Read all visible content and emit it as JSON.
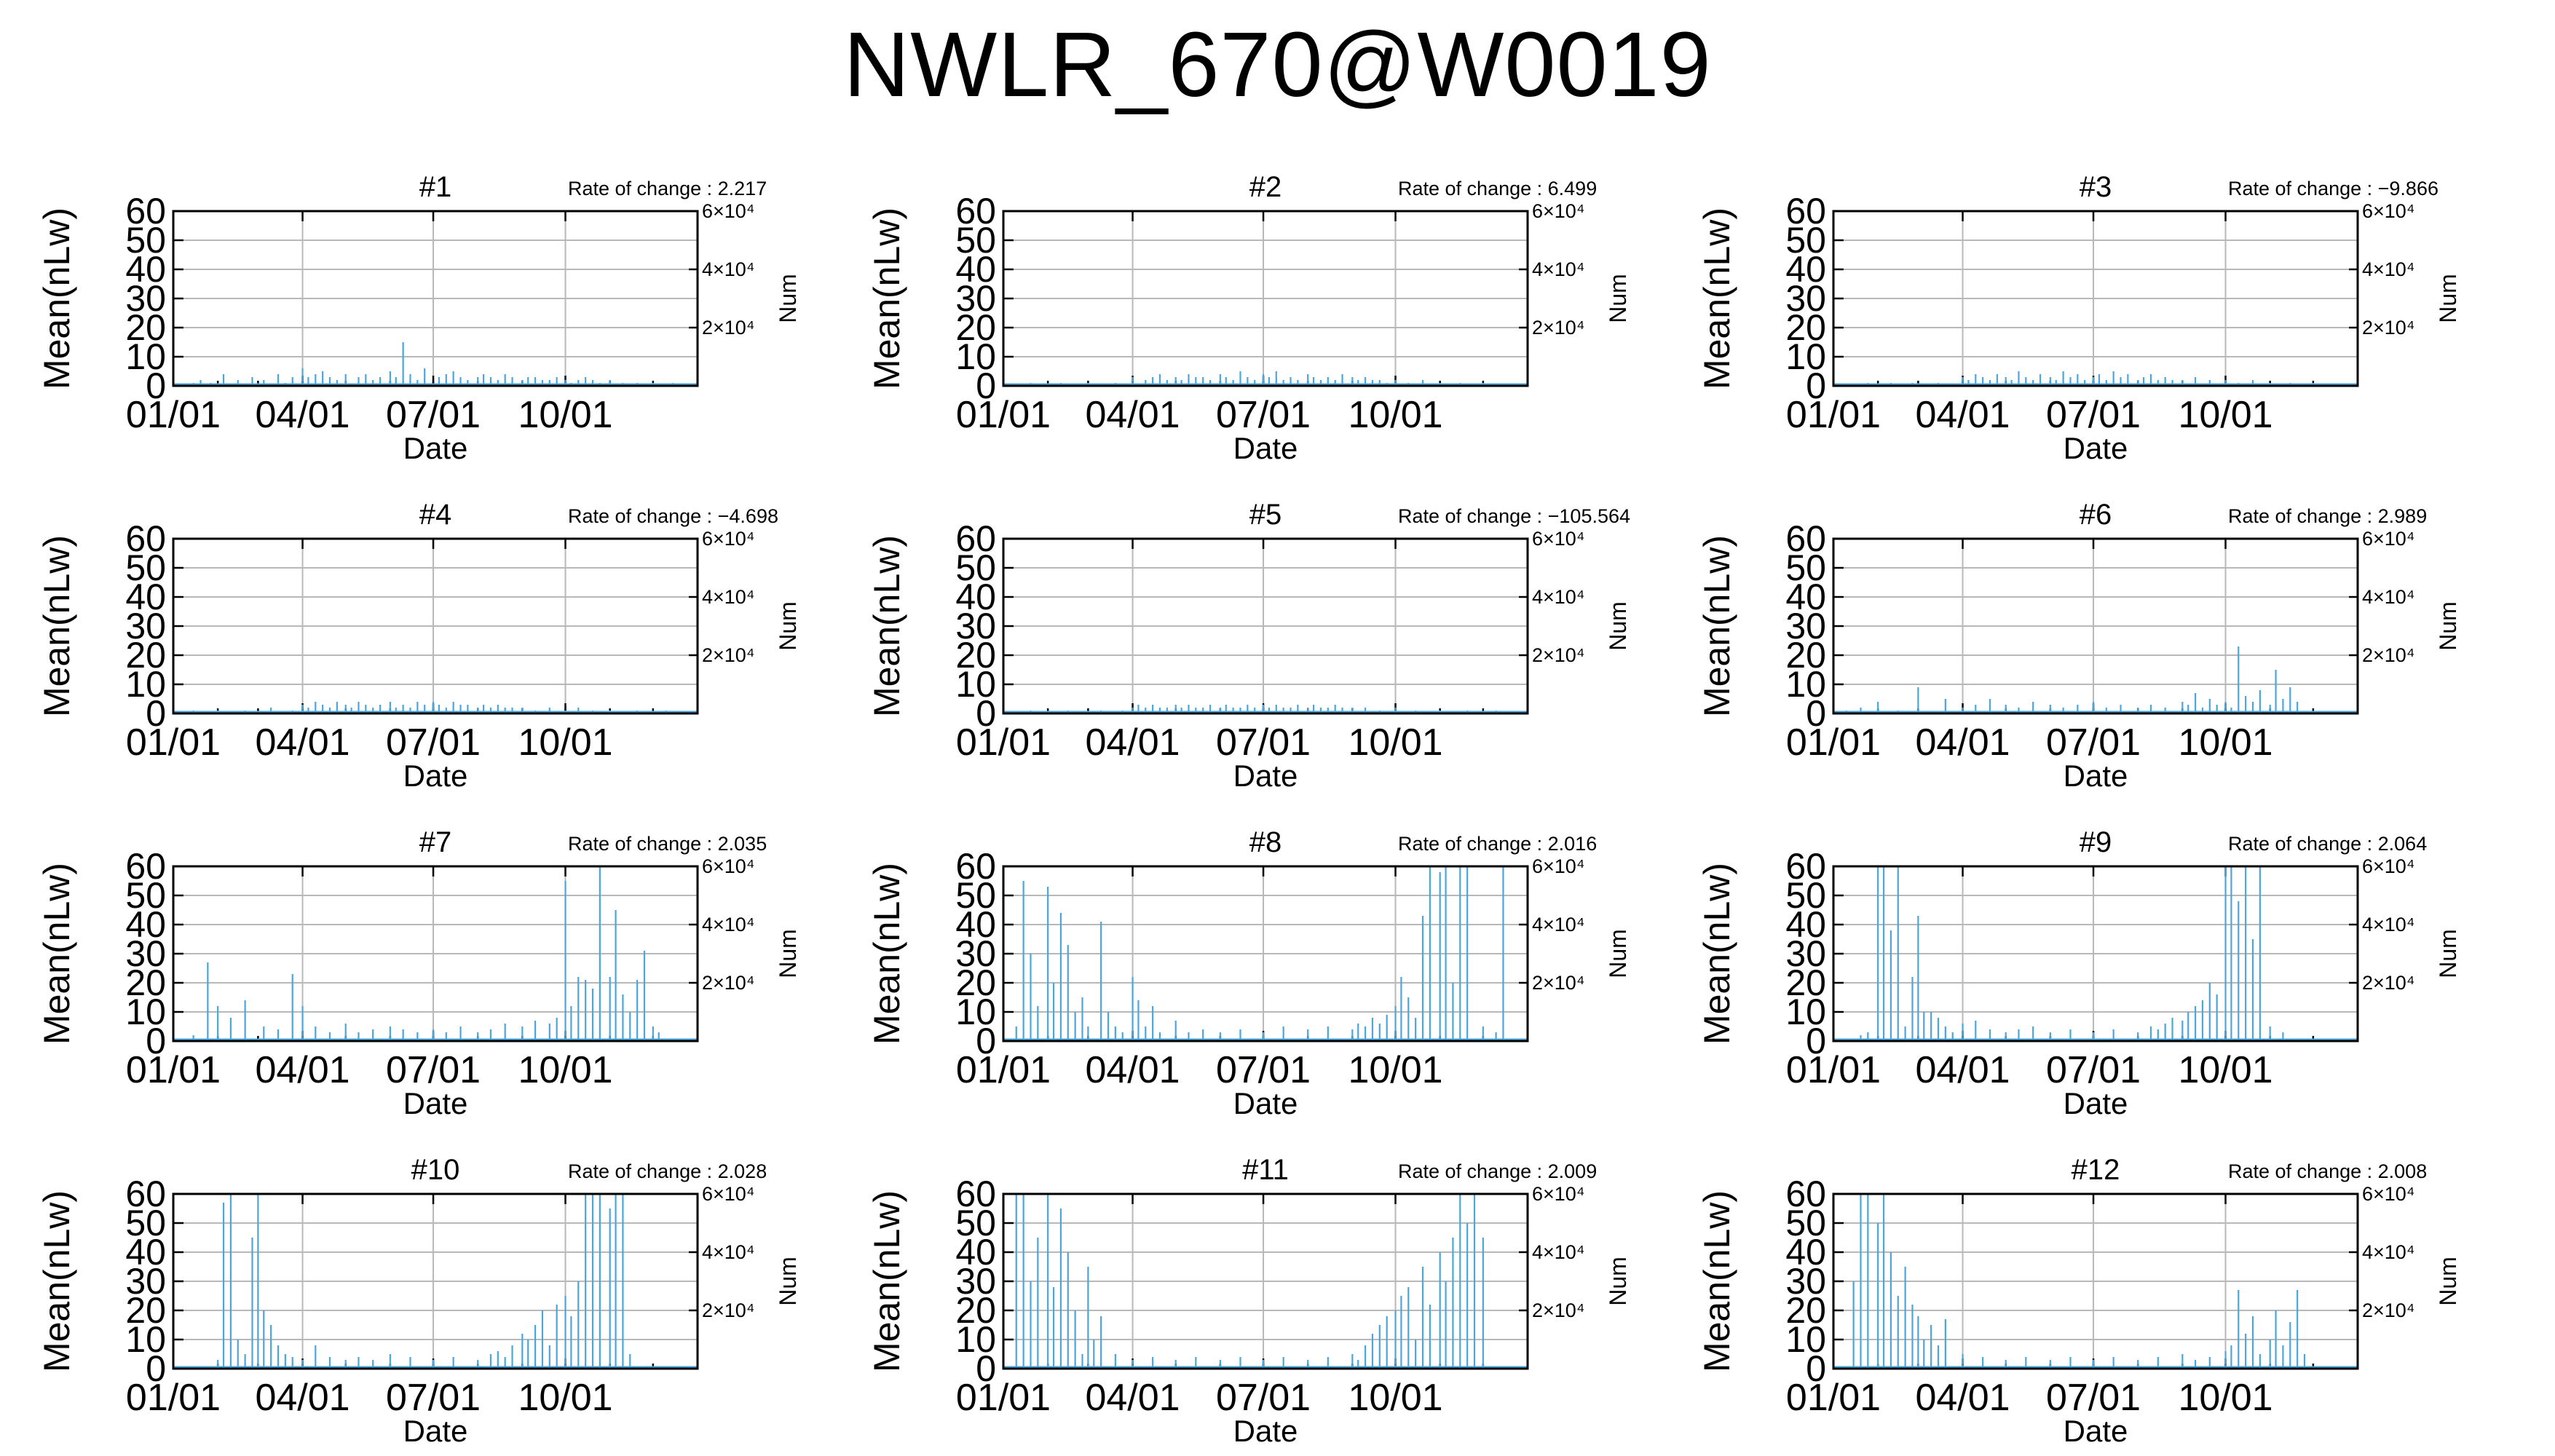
{
  "title": "NWLR_670@W0019",
  "chart_data": [
    {
      "type": "bar",
      "title": "#1",
      "rate": "Rate of change : 2.217",
      "x": [
        "01/15",
        "01/20",
        "01/27",
        "02/05",
        "02/15",
        "02/25",
        "03/05",
        "03/15",
        "03/20",
        "03/25",
        "04/01",
        "04/05",
        "04/10",
        "04/15",
        "04/20",
        "04/25",
        "05/01",
        "05/10",
        "05/15",
        "05/20",
        "05/25",
        "06/01",
        "06/05",
        "06/10",
        "06/15",
        "06/20",
        "06/25",
        "07/05",
        "07/10",
        "07/15",
        "07/20",
        "07/25",
        "08/01",
        "08/05",
        "08/10",
        "08/15",
        "08/20",
        "08/25",
        "09/01",
        "09/05",
        "09/10",
        "09/15",
        "09/20",
        "09/25",
        "10/01",
        "10/05",
        "10/10",
        "10/15",
        "10/20",
        "10/25",
        "11/01",
        "11/10",
        "11/20",
        "12/01",
        "12/15"
      ],
      "values": [
        1,
        2,
        1,
        4,
        2,
        3,
        2,
        4,
        1,
        3,
        6,
        3,
        4,
        5,
        3,
        2,
        4,
        3,
        4,
        2,
        3,
        5,
        3,
        15,
        4,
        2,
        6,
        3,
        4,
        5,
        3,
        2,
        3,
        4,
        3,
        2,
        4,
        3,
        2,
        3,
        3,
        2,
        2,
        3,
        2,
        1,
        2,
        3,
        2,
        1,
        2,
        1,
        1,
        1,
        1
      ]
    },
    {
      "type": "bar",
      "title": "#2",
      "rate": "Rate of change : 6.499",
      "x": [
        "01/20",
        "02/10",
        "03/01",
        "03/20",
        "04/01",
        "04/10",
        "04/15",
        "04/20",
        "04/25",
        "05/01",
        "05/05",
        "05/10",
        "05/15",
        "05/20",
        "05/25",
        "06/01",
        "06/05",
        "06/10",
        "06/15",
        "06/20",
        "06/25",
        "07/01",
        "07/05",
        "07/10",
        "07/15",
        "07/20",
        "07/25",
        "08/01",
        "08/05",
        "08/10",
        "08/15",
        "08/20",
        "08/25",
        "09/01",
        "09/05",
        "09/10",
        "09/15",
        "09/20",
        "09/25",
        "10/01",
        "10/10",
        "10/20",
        "11/01",
        "11/15",
        "12/01"
      ],
      "values": [
        1,
        1,
        1,
        1,
        3,
        2,
        3,
        4,
        2,
        3,
        2,
        4,
        3,
        3,
        2,
        4,
        3,
        2,
        5,
        3,
        2,
        4,
        3,
        5,
        2,
        3,
        2,
        4,
        3,
        2,
        3,
        2,
        4,
        3,
        2,
        3,
        2,
        2,
        1,
        2,
        1,
        2,
        1,
        1,
        1
      ]
    },
    {
      "type": "bar",
      "title": "#3",
      "rate": "Rate of change : −9.866",
      "x": [
        "01/25",
        "02/10",
        "02/25",
        "03/15",
        "04/01",
        "04/05",
        "04/10",
        "04/15",
        "04/20",
        "04/25",
        "05/01",
        "05/05",
        "05/10",
        "05/15",
        "05/20",
        "05/25",
        "06/01",
        "06/05",
        "06/10",
        "06/15",
        "06/20",
        "06/25",
        "07/01",
        "07/05",
        "07/10",
        "07/15",
        "07/20",
        "07/25",
        "08/01",
        "08/05",
        "08/10",
        "08/15",
        "08/20",
        "08/25",
        "09/01",
        "09/10",
        "09/20",
        "10/01",
        "10/10",
        "10/20",
        "11/01",
        "11/15",
        "12/01"
      ],
      "values": [
        1,
        1,
        1,
        1,
        3,
        2,
        4,
        3,
        2,
        4,
        3,
        2,
        5,
        3,
        2,
        4,
        3,
        2,
        5,
        3,
        4,
        2,
        3,
        4,
        2,
        5,
        3,
        4,
        2,
        3,
        4,
        2,
        3,
        2,
        2,
        3,
        2,
        2,
        1,
        2,
        1,
        1,
        1
      ]
    },
    {
      "type": "bar",
      "title": "#4",
      "rate": "Rate of change : −4.698",
      "x": [
        "01/15",
        "02/01",
        "02/20",
        "03/10",
        "03/25",
        "04/01",
        "04/05",
        "04/10",
        "04/15",
        "04/20",
        "04/25",
        "05/01",
        "05/05",
        "05/10",
        "05/15",
        "05/20",
        "05/25",
        "06/01",
        "06/05",
        "06/10",
        "06/15",
        "06/20",
        "06/25",
        "07/01",
        "07/05",
        "07/10",
        "07/15",
        "07/20",
        "07/25",
        "08/01",
        "08/05",
        "08/10",
        "08/15",
        "08/20",
        "08/25",
        "09/01",
        "09/10",
        "09/20",
        "10/01",
        "10/10",
        "10/20",
        "11/01",
        "11/20",
        "12/10"
      ],
      "values": [
        1,
        1,
        1,
        2,
        1,
        3,
        2,
        4,
        3,
        2,
        4,
        3,
        2,
        4,
        3,
        2,
        3,
        4,
        2,
        3,
        2,
        4,
        3,
        4,
        3,
        2,
        4,
        3,
        3,
        2,
        3,
        2,
        3,
        2,
        2,
        2,
        1,
        2,
        1,
        2,
        1,
        1,
        1,
        1
      ]
    },
    {
      "type": "bar",
      "title": "#5",
      "rate": "Rate of change : −105.564",
      "x": [
        "01/20",
        "02/15",
        "03/10",
        "03/25",
        "04/01",
        "04/05",
        "04/10",
        "04/15",
        "04/20",
        "04/25",
        "05/01",
        "05/05",
        "05/10",
        "05/15",
        "05/20",
        "05/25",
        "06/01",
        "06/05",
        "06/10",
        "06/15",
        "06/20",
        "06/25",
        "07/01",
        "07/05",
        "07/10",
        "07/15",
        "07/20",
        "07/25",
        "08/01",
        "08/05",
        "08/10",
        "08/15",
        "08/20",
        "08/25",
        "09/01",
        "09/10",
        "09/20",
        "10/01",
        "10/15",
        "11/01",
        "11/20",
        "12/10"
      ],
      "values": [
        1,
        1,
        1,
        1,
        2,
        3,
        2,
        3,
        2,
        2,
        3,
        2,
        3,
        2,
        2,
        3,
        2,
        3,
        2,
        2,
        3,
        2,
        3,
        2,
        3,
        2,
        2,
        3,
        2,
        3,
        2,
        2,
        3,
        2,
        2,
        2,
        1,
        2,
        1,
        1,
        1,
        1
      ]
    },
    {
      "type": "bar",
      "title": "#6",
      "rate": "Rate of change : 2.989",
      "x": [
        "01/10",
        "01/20",
        "02/01",
        "02/15",
        "03/01",
        "03/20",
        "04/01",
        "04/10",
        "04/20",
        "05/01",
        "05/10",
        "05/20",
        "06/01",
        "06/10",
        "06/20",
        "07/01",
        "07/10",
        "07/20",
        "08/01",
        "08/10",
        "08/20",
        "09/01",
        "09/05",
        "09/10",
        "09/15",
        "09/20",
        "09/25",
        "10/01",
        "10/05",
        "10/10",
        "10/15",
        "10/20",
        "10/25",
        "11/01",
        "11/05",
        "11/10",
        "11/15",
        "11/20"
      ],
      "values": [
        1,
        2,
        4,
        1,
        9,
        5,
        2,
        3,
        5,
        3,
        2,
        4,
        3,
        2,
        3,
        4,
        2,
        3,
        2,
        3,
        2,
        4,
        3,
        7,
        2,
        5,
        3,
        4,
        2,
        23,
        6,
        4,
        8,
        3,
        15,
        5,
        9,
        4
      ]
    },
    {
      "type": "bar",
      "title": "#7",
      "rate": "Rate of change : 2.035",
      "x": [
        "01/15",
        "01/25",
        "02/01",
        "02/10",
        "02/20",
        "03/05",
        "03/15",
        "03/25",
        "04/01",
        "04/10",
        "04/20",
        "05/01",
        "05/10",
        "05/20",
        "06/01",
        "06/10",
        "06/20",
        "07/01",
        "07/10",
        "07/20",
        "08/01",
        "08/10",
        "08/20",
        "09/01",
        "09/10",
        "09/20",
        "09/25",
        "10/01",
        "10/05",
        "10/10",
        "10/15",
        "10/20",
        "10/25",
        "11/01",
        "11/05",
        "11/10",
        "11/15",
        "11/20",
        "11/25",
        "12/01",
        "12/05"
      ],
      "values": [
        2,
        27,
        12,
        8,
        14,
        5,
        4,
        23,
        12,
        5,
        3,
        6,
        3,
        4,
        5,
        4,
        3,
        4,
        3,
        5,
        3,
        4,
        6,
        5,
        7,
        6,
        8,
        55,
        12,
        22,
        21,
        18,
        60,
        22,
        45,
        16,
        10,
        21,
        31,
        5,
        3
      ]
    },
    {
      "type": "bar",
      "title": "#8",
      "rate": "Rate of change : 2.016",
      "x": [
        "01/10",
        "01/15",
        "01/20",
        "01/25",
        "02/01",
        "02/05",
        "02/10",
        "02/15",
        "02/20",
        "02/25",
        "03/01",
        "03/10",
        "03/15",
        "03/20",
        "03/25",
        "04/01",
        "04/05",
        "04/10",
        "04/15",
        "04/20",
        "05/01",
        "05/10",
        "05/20",
        "06/01",
        "06/15",
        "07/01",
        "07/15",
        "08/01",
        "08/15",
        "09/01",
        "09/05",
        "09/10",
        "09/15",
        "09/20",
        "09/25",
        "10/01",
        "10/05",
        "10/10",
        "10/15",
        "10/20",
        "10/25",
        "11/01",
        "11/05",
        "11/10",
        "11/15",
        "11/20",
        "12/01",
        "12/10",
        "12/15"
      ],
      "values": [
        5,
        55,
        30,
        12,
        53,
        20,
        44,
        33,
        10,
        15,
        5,
        41,
        10,
        5,
        3,
        22,
        14,
        5,
        12,
        3,
        7,
        3,
        4,
        3,
        4,
        3,
        5,
        4,
        5,
        4,
        6,
        5,
        8,
        6,
        9,
        12,
        22,
        15,
        8,
        43,
        60,
        58,
        60,
        20,
        60,
        60,
        5,
        3,
        60
      ]
    },
    {
      "type": "bar",
      "title": "#9",
      "rate": "Rate of change : 2.064",
      "x": [
        "01/20",
        "01/25",
        "02/01",
        "02/05",
        "02/10",
        "02/15",
        "02/20",
        "02/25",
        "03/01",
        "03/05",
        "03/10",
        "03/15",
        "03/20",
        "03/25",
        "04/01",
        "04/10",
        "04/20",
        "05/01",
        "05/10",
        "05/20",
        "06/01",
        "06/15",
        "07/01",
        "07/15",
        "08/01",
        "08/10",
        "08/15",
        "08/20",
        "08/25",
        "09/01",
        "09/05",
        "09/10",
        "09/15",
        "09/20",
        "09/25",
        "10/01",
        "10/05",
        "10/10",
        "10/15",
        "10/20",
        "10/25",
        "11/01",
        "11/10"
      ],
      "values": [
        2,
        3,
        60,
        60,
        38,
        60,
        5,
        22,
        43,
        10,
        10,
        8,
        5,
        3,
        6,
        7,
        4,
        3,
        4,
        5,
        3,
        4,
        3,
        4,
        3,
        5,
        4,
        6,
        8,
        7,
        10,
        12,
        14,
        20,
        16,
        60,
        60,
        48,
        60,
        35,
        60,
        5,
        3
      ]
    },
    {
      "type": "bar",
      "title": "#10",
      "rate": "Rate of change : 2.028",
      "x": [
        "02/01",
        "02/05",
        "02/10",
        "02/15",
        "02/20",
        "02/25",
        "03/01",
        "03/05",
        "03/10",
        "03/15",
        "03/20",
        "03/25",
        "04/01",
        "04/10",
        "04/20",
        "05/01",
        "05/10",
        "05/20",
        "06/01",
        "06/15",
        "07/01",
        "07/15",
        "08/01",
        "08/10",
        "08/15",
        "08/20",
        "08/25",
        "09/01",
        "09/05",
        "09/10",
        "09/15",
        "09/20",
        "09/25",
        "10/01",
        "10/05",
        "10/10",
        "10/15",
        "10/20",
        "10/25",
        "11/01",
        "11/05",
        "11/10",
        "11/15"
      ],
      "values": [
        3,
        57,
        60,
        10,
        5,
        45,
        60,
        20,
        15,
        8,
        5,
        4,
        3,
        8,
        4,
        3,
        4,
        3,
        5,
        4,
        3,
        4,
        3,
        5,
        6,
        4,
        8,
        12,
        10,
        15,
        20,
        8,
        22,
        25,
        18,
        30,
        60,
        60,
        60,
        55,
        60,
        60,
        5
      ]
    },
    {
      "type": "bar",
      "title": "#11",
      "rate": "Rate of change : 2.009",
      "x": [
        "01/10",
        "01/15",
        "01/20",
        "01/25",
        "02/01",
        "02/05",
        "02/10",
        "02/15",
        "02/20",
        "02/25",
        "03/01",
        "03/05",
        "03/10",
        "03/20",
        "04/01",
        "04/15",
        "05/01",
        "05/15",
        "06/01",
        "06/15",
        "07/01",
        "07/15",
        "08/01",
        "08/15",
        "09/01",
        "09/05",
        "09/10",
        "09/15",
        "09/20",
        "09/25",
        "10/01",
        "10/05",
        "10/10",
        "10/15",
        "10/20",
        "10/25",
        "11/01",
        "11/05",
        "11/10",
        "11/15",
        "11/20",
        "11/25",
        "12/01"
      ],
      "values": [
        60,
        60,
        30,
        45,
        60,
        28,
        55,
        40,
        20,
        5,
        35,
        10,
        18,
        5,
        3,
        4,
        3,
        4,
        3,
        4,
        3,
        4,
        3,
        4,
        5,
        3,
        8,
        12,
        15,
        18,
        20,
        25,
        28,
        10,
        35,
        22,
        40,
        30,
        45,
        60,
        50,
        60,
        45
      ]
    },
    {
      "type": "bar",
      "title": "#12",
      "rate": "Rate of change : 2.008",
      "x": [
        "01/15",
        "01/20",
        "01/25",
        "02/01",
        "02/05",
        "02/10",
        "02/15",
        "02/20",
        "02/25",
        "03/01",
        "03/05",
        "03/10",
        "03/15",
        "03/20",
        "04/01",
        "04/15",
        "05/01",
        "05/15",
        "06/01",
        "06/15",
        "07/01",
        "07/15",
        "08/01",
        "08/15",
        "09/01",
        "09/10",
        "09/20",
        "10/01",
        "10/05",
        "10/10",
        "10/15",
        "10/20",
        "10/25",
        "11/01",
        "11/05",
        "11/10",
        "11/15",
        "11/20",
        "11/25"
      ],
      "values": [
        30,
        60,
        60,
        50,
        60,
        40,
        25,
        35,
        22,
        18,
        10,
        15,
        8,
        17,
        5,
        4,
        3,
        4,
        3,
        4,
        3,
        4,
        3,
        4,
        5,
        3,
        4,
        6,
        8,
        27,
        12,
        18,
        5,
        10,
        20,
        8,
        16,
        27,
        5
      ]
    }
  ],
  "common": {
    "y_ticks": [
      "60",
      "50",
      "40",
      "30",
      "20",
      "10",
      "0"
    ],
    "ylim": [
      0,
      60
    ],
    "x_ticks": [
      "01/01",
      "04/01",
      "07/01",
      "10/01"
    ],
    "xlabel": "Date",
    "ylabel": "Mean(nLw)",
    "right_ticks": [
      "6×10⁴",
      "4×10⁴",
      "2×10⁴"
    ],
    "right_label": "Num",
    "bar_color": "#4aa6dd"
  }
}
